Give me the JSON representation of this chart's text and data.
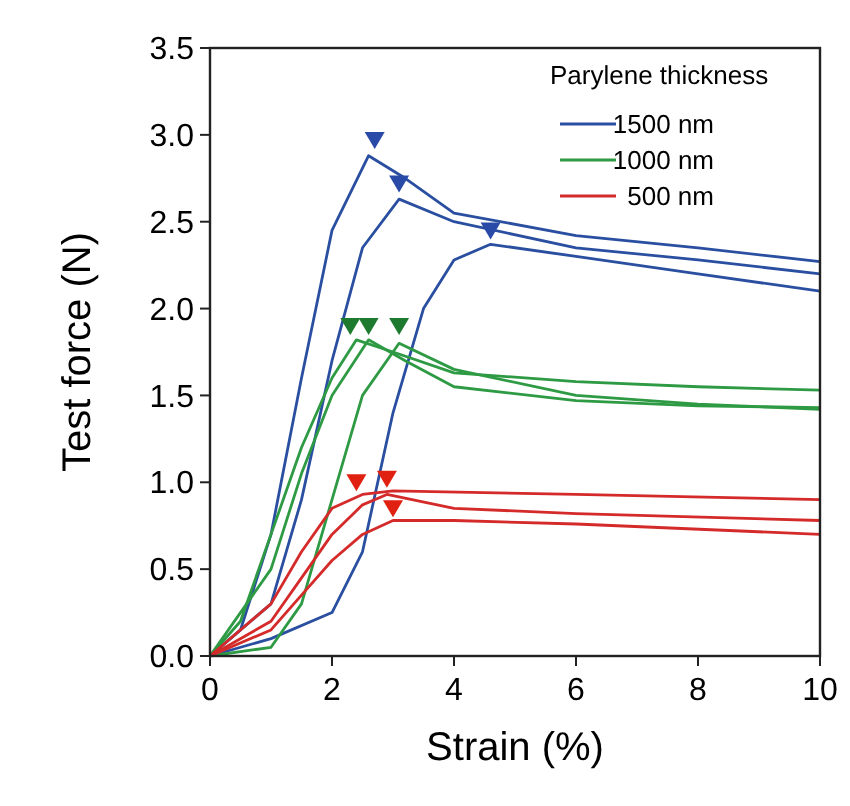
{
  "chart_data": {
    "type": "line",
    "xlabel": "Strain (%)",
    "ylabel": "Test force (N)",
    "legend_title": "Parylene thickness",
    "legend": "top right",
    "grid": false,
    "line_style": "solid",
    "xlim": [
      0,
      10
    ],
    "ylim": [
      0,
      3.5
    ],
    "xticks": [
      0,
      2,
      4,
      6,
      8,
      10
    ],
    "yticks": [
      {
        "value": 0,
        "label": "0.0"
      },
      {
        "value": 0.5,
        "label": "0.5"
      },
      {
        "value": 1,
        "label": "1.0"
      },
      {
        "value": 1.5,
        "label": "1.5"
      },
      {
        "value": 2,
        "label": "2.0"
      },
      {
        "value": 2.5,
        "label": "2.5"
      },
      {
        "value": 3,
        "label": "3.0"
      },
      {
        "value": 3.5,
        "label": "3.5"
      }
    ],
    "series": [
      {
        "name": "1500 nm",
        "color": "#2a4fa0",
        "x": [
          0,
          0.5,
          1,
          1.5,
          2,
          2.6,
          3.2,
          4,
          6,
          8,
          10
        ],
        "values": [
          0,
          0.15,
          0.7,
          1.6,
          2.45,
          2.88,
          2.75,
          2.55,
          2.42,
          2.35,
          2.27
        ]
      },
      {
        "color": "#2a4fa0",
        "x": [
          0,
          1,
          1.5,
          2,
          2.5,
          3.1,
          4,
          6,
          8,
          10
        ],
        "values": [
          0,
          0.3,
          0.9,
          1.7,
          2.35,
          2.63,
          2.5,
          2.35,
          2.28,
          2.2
        ]
      },
      {
        "color": "#2a4fa0",
        "x": [
          0,
          1,
          2,
          2.5,
          3,
          3.5,
          4,
          4.6,
          6,
          8,
          10
        ],
        "values": [
          0,
          0.1,
          0.25,
          0.6,
          1.4,
          2.0,
          2.28,
          2.37,
          2.3,
          2.2,
          2.1
        ]
      },
      {
        "name": "1000 nm",
        "color": "#2e9a44",
        "x": [
          0,
          0.5,
          1,
          1.5,
          2,
          2.4,
          3,
          4,
          6,
          8,
          10
        ],
        "values": [
          0,
          0.2,
          0.7,
          1.2,
          1.6,
          1.82,
          1.75,
          1.63,
          1.58,
          1.55,
          1.53
        ]
      },
      {
        "color": "#2e9a44",
        "x": [
          0,
          1,
          1.5,
          2,
          2.6,
          3.2,
          4,
          6,
          8,
          10
        ],
        "values": [
          0,
          0.5,
          1.05,
          1.5,
          1.82,
          1.7,
          1.55,
          1.47,
          1.44,
          1.43
        ]
      },
      {
        "color": "#2e9a44",
        "x": [
          0,
          1,
          1.5,
          2,
          2.5,
          3.1,
          4,
          6,
          8,
          10
        ],
        "values": [
          0,
          0.05,
          0.3,
          0.9,
          1.5,
          1.8,
          1.65,
          1.5,
          1.45,
          1.42
        ]
      },
      {
        "name": "500 nm",
        "color": "#d42a2a",
        "x": [
          0,
          1,
          1.5,
          2,
          2.5,
          3,
          6,
          10
        ],
        "values": [
          0,
          0.3,
          0.6,
          0.85,
          0.93,
          0.95,
          0.93,
          0.9
        ]
      },
      {
        "color": "#d42a2a",
        "x": [
          0,
          1,
          1.5,
          2,
          2.5,
          2.9,
          4,
          6,
          10
        ],
        "values": [
          0,
          0.2,
          0.45,
          0.7,
          0.87,
          0.93,
          0.85,
          0.82,
          0.78
        ]
      },
      {
        "color": "#d42a2a",
        "x": [
          0,
          1,
          1.5,
          2,
          2.5,
          3,
          4,
          6,
          10
        ],
        "values": [
          0,
          0.15,
          0.35,
          0.55,
          0.7,
          0.78,
          0.78,
          0.76,
          0.7
        ]
      },
      {
        "type": "scatter",
        "marker": "triangle",
        "color": "#2a4aa8",
        "x": [
          2.7,
          3.1,
          4.6
        ],
        "values": [
          2.97,
          2.72,
          2.45
        ]
      },
      {
        "type": "scatter",
        "marker": "triangle",
        "color": "#1e7a2e",
        "x": [
          2.3,
          2.6,
          3.1
        ],
        "values": [
          1.9,
          1.9,
          1.9
        ]
      },
      {
        "type": "scatter",
        "marker": "triangle",
        "color": "#e02010",
        "x": [
          2.4,
          2.9,
          3.0
        ],
        "values": [
          1.0,
          1.02,
          0.85
        ]
      }
    ]
  }
}
